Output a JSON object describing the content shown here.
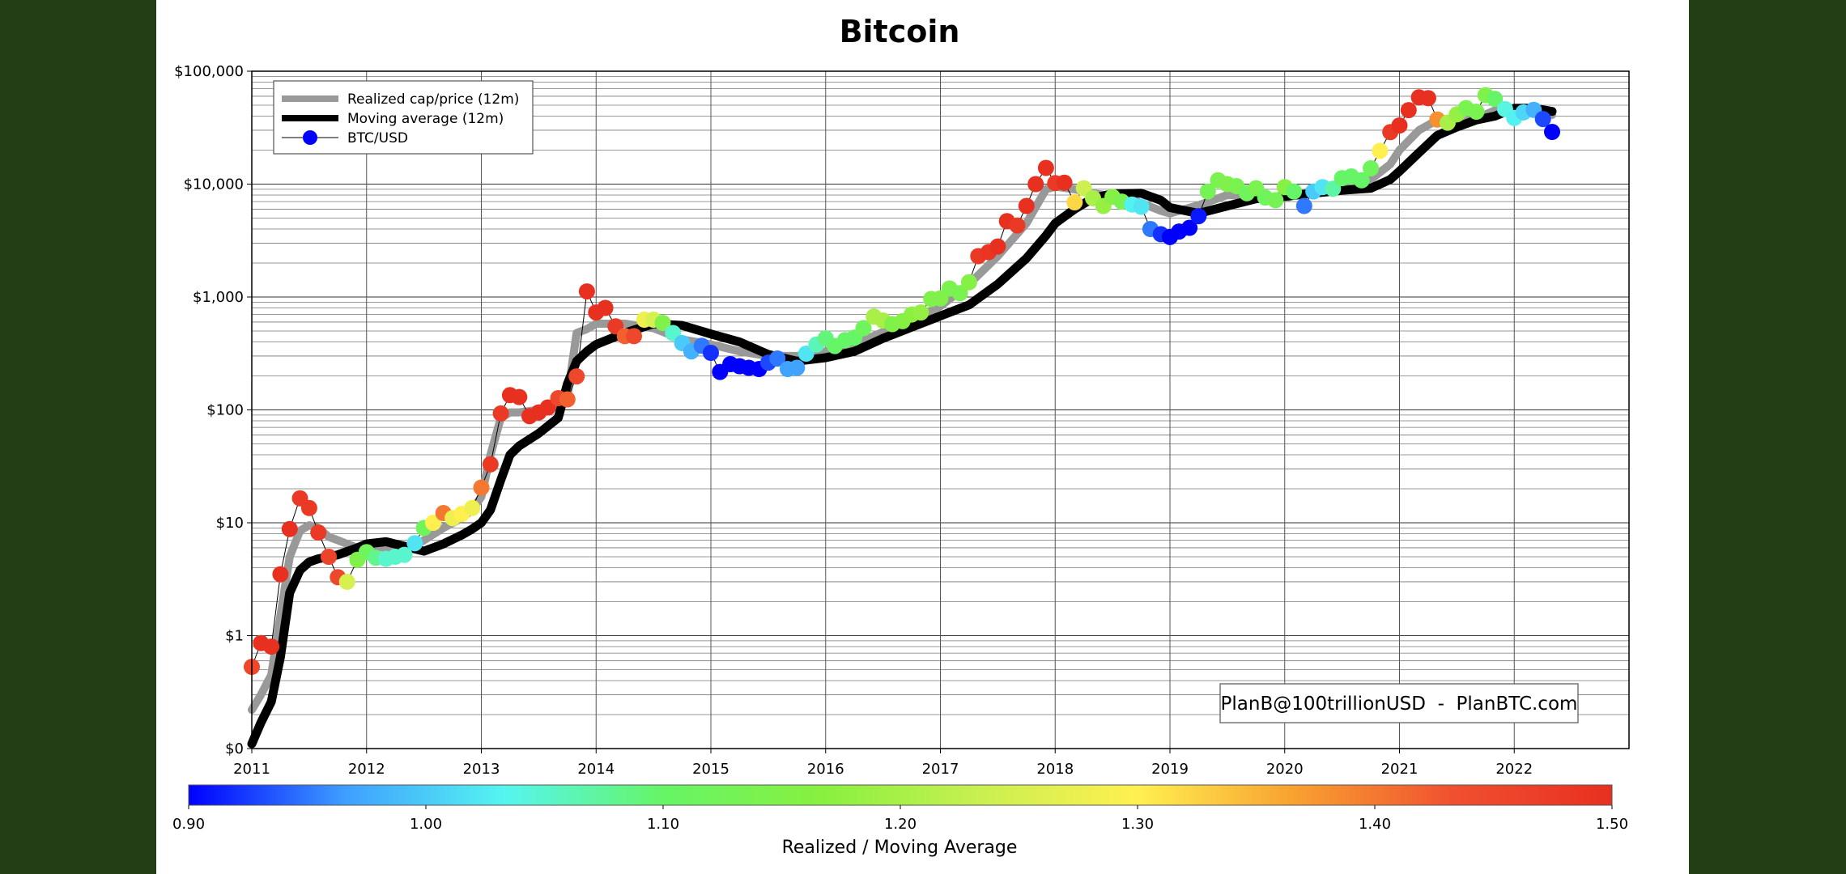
{
  "chart_data": {
    "type": "scatter",
    "title": "Bitcoin",
    "xlabel": "",
    "ylabel": "",
    "y_scale": "log",
    "xlim": [
      2011.0,
      2023.0
    ],
    "ylim": [
      0.1,
      100000
    ],
    "y_ticks": [
      {
        "value": 0.1,
        "label": "$0"
      },
      {
        "value": 1,
        "label": "$1"
      },
      {
        "value": 10,
        "label": "$10"
      },
      {
        "value": 100,
        "label": "$100"
      },
      {
        "value": 1000,
        "label": "$1,000"
      },
      {
        "value": 10000,
        "label": "$10,000"
      },
      {
        "value": 100000,
        "label": "$100,000"
      }
    ],
    "x_ticks": [
      "2011",
      "2012",
      "2013",
      "2014",
      "2015",
      "2016",
      "2017",
      "2018",
      "2019",
      "2020",
      "2021",
      "2022"
    ],
    "grid": true,
    "legend_position": "top-left",
    "legend": [
      {
        "label": "Realized cap/price (12m)",
        "color": "#999999",
        "style": "thick-line"
      },
      {
        "label": "Moving average (12m)",
        "color": "#000000",
        "style": "thick-line"
      },
      {
        "label": "BTC/USD",
        "color": "#0000ff",
        "style": "marker-line"
      }
    ],
    "annotation": "PlanB@100trillionUSD  -  PlanBTC.com",
    "colorbar": {
      "label": "Realized / Moving Average",
      "min": 0.9,
      "max": 1.5,
      "ticks": [
        "0.90",
        "1.00",
        "1.10",
        "1.20",
        "1.30",
        "1.40",
        "1.50"
      ],
      "colors": [
        "#0000ff",
        "#3fa0ff",
        "#55f5f0",
        "#66f566",
        "#88f040",
        "#c8f050",
        "#fff050",
        "#f8a030",
        "#f05030",
        "#e83020"
      ]
    },
    "series": [
      {
        "name": "Realized cap/price (12m)",
        "color": "#999999",
        "x": [
          2011.0,
          2011.08,
          2011.17,
          2011.25,
          2011.33,
          2011.42,
          2011.5,
          2011.58,
          2011.67,
          2011.75,
          2011.83,
          2011.92,
          2012.0,
          2012.17,
          2012.33,
          2012.5,
          2012.67,
          2012.83,
          2012.92,
          2013.0,
          2013.08,
          2013.17,
          2013.25,
          2013.33,
          2013.5,
          2013.67,
          2013.75,
          2013.83,
          2013.92,
          2014.0,
          2014.25,
          2014.5,
          2014.75,
          2015.0,
          2015.25,
          2015.5,
          2015.75,
          2016.0,
          2016.25,
          2016.5,
          2016.75,
          2017.0,
          2017.25,
          2017.5,
          2017.75,
          2017.92,
          2018.0,
          2018.17,
          2018.33,
          2018.5,
          2018.75,
          2018.92,
          2019.0,
          2019.25,
          2019.5,
          2019.75,
          2020.0,
          2020.25,
          2020.5,
          2020.75,
          2020.92,
          2021.0,
          2021.17,
          2021.33,
          2021.5,
          2021.67,
          2021.83,
          2022.0,
          2022.17,
          2022.33
        ],
        "y": [
          0.22,
          0.3,
          0.45,
          1.5,
          5.0,
          8.5,
          9.5,
          9.0,
          7.5,
          7.0,
          6.5,
          6.0,
          6.2,
          6.0,
          5.6,
          7.0,
          9.0,
          11.0,
          13.0,
          17.0,
          40.0,
          85.0,
          95.0,
          95.0,
          100.0,
          110.0,
          130.0,
          480.0,
          520.0,
          580.0,
          580.0,
          530.0,
          420.0,
          380.0,
          330.0,
          300.0,
          300.0,
          330.0,
          380.0,
          490.0,
          620.0,
          830.0,
          1300.0,
          2300.0,
          4500.0,
          9000.0,
          9500.0,
          9000.0,
          8300.0,
          7800.0,
          6800.0,
          5800.0,
          5500.0,
          6500.0,
          8000.0,
          7800.0,
          7500.0,
          8800.0,
          9500.0,
          11000.0,
          15000.0,
          20000.0,
          30000.0,
          37000.0,
          35000.0,
          38000.0,
          45000.0,
          46000.0,
          44000.0,
          41000.0
        ]
      },
      {
        "name": "Moving average (12m)",
        "color": "#000000",
        "x": [
          2011.0,
          2011.08,
          2011.17,
          2011.25,
          2011.33,
          2011.42,
          2011.5,
          2011.58,
          2011.67,
          2011.75,
          2011.92,
          2012.0,
          2012.17,
          2012.33,
          2012.5,
          2012.67,
          2012.83,
          2012.92,
          2013.0,
          2013.08,
          2013.17,
          2013.25,
          2013.33,
          2013.5,
          2013.67,
          2013.75,
          2013.83,
          2013.92,
          2014.0,
          2014.25,
          2014.5,
          2014.75,
          2015.0,
          2015.25,
          2015.5,
          2015.75,
          2016.0,
          2016.25,
          2016.5,
          2016.75,
          2017.0,
          2017.25,
          2017.5,
          2017.75,
          2017.92,
          2018.0,
          2018.17,
          2018.33,
          2018.5,
          2018.75,
          2018.92,
          2019.0,
          2019.25,
          2019.5,
          2019.75,
          2020.0,
          2020.25,
          2020.5,
          2020.75,
          2020.92,
          2021.0,
          2021.17,
          2021.33,
          2021.5,
          2021.67,
          2021.83,
          2022.0,
          2022.17,
          2022.33
        ],
        "y": [
          0.11,
          0.17,
          0.26,
          0.65,
          2.4,
          3.8,
          4.5,
          4.8,
          5.0,
          5.2,
          6.0,
          6.5,
          6.8,
          6.2,
          5.6,
          6.5,
          7.8,
          8.8,
          10.0,
          13.0,
          24.0,
          40.0,
          48.0,
          62.0,
          85.0,
          170.0,
          270.0,
          330.0,
          380.0,
          480.0,
          580.0,
          560.0,
          470.0,
          400.0,
          310.0,
          270.0,
          290.0,
          330.0,
          430.0,
          540.0,
          680.0,
          850.0,
          1300.0,
          2200.0,
          3500.0,
          4500.0,
          6000.0,
          7500.0,
          8200.0,
          8300.0,
          7200.0,
          6200.0,
          5500.0,
          6400.0,
          7400.0,
          7800.0,
          8300.0,
          8800.0,
          9200.0,
          11000.0,
          13000.0,
          19000.0,
          27000.0,
          32000.0,
          37000.0,
          40000.0,
          47000.0,
          47000.0,
          44000.0
        ]
      },
      {
        "name": "BTC/USD",
        "color": "#000000",
        "x": [
          2011.0,
          2011.08,
          2011.17,
          2011.25,
          2011.33,
          2011.42,
          2011.5,
          2011.58,
          2011.67,
          2011.75,
          2011.83,
          2011.92,
          2012.0,
          2012.08,
          2012.17,
          2012.25,
          2012.33,
          2012.42,
          2012.5,
          2012.58,
          2012.67,
          2012.75,
          2012.83,
          2012.92,
          2013.0,
          2013.08,
          2013.17,
          2013.25,
          2013.33,
          2013.42,
          2013.5,
          2013.58,
          2013.67,
          2013.75,
          2013.83,
          2013.92,
          2014.0,
          2014.08,
          2014.17,
          2014.25,
          2014.33,
          2014.42,
          2014.5,
          2014.58,
          2014.67,
          2014.75,
          2014.83,
          2014.92,
          2015.0,
          2015.08,
          2015.17,
          2015.25,
          2015.33,
          2015.42,
          2015.5,
          2015.58,
          2015.67,
          2015.75,
          2015.83,
          2015.92,
          2016.0,
          2016.08,
          2016.17,
          2016.25,
          2016.33,
          2016.42,
          2016.5,
          2016.58,
          2016.67,
          2016.75,
          2016.83,
          2016.92,
          2017.0,
          2017.08,
          2017.17,
          2017.25,
          2017.33,
          2017.42,
          2017.5,
          2017.58,
          2017.67,
          2017.75,
          2017.83,
          2017.92,
          2018.0,
          2018.08,
          2018.17,
          2018.25,
          2018.33,
          2018.42,
          2018.5,
          2018.58,
          2018.67,
          2018.75,
          2018.83,
          2018.92,
          2019.0,
          2019.08,
          2019.17,
          2019.25,
          2019.33,
          2019.42,
          2019.5,
          2019.58,
          2019.67,
          2019.75,
          2019.83,
          2019.92,
          2020.0,
          2020.08,
          2020.17,
          2020.25,
          2020.33,
          2020.42,
          2020.5,
          2020.58,
          2020.67,
          2020.75,
          2020.83,
          2020.92,
          2021.0,
          2021.08,
          2021.17,
          2021.25,
          2021.33,
          2021.42,
          2021.5,
          2021.58,
          2021.67,
          2021.75,
          2021.83,
          2021.92,
          2022.0,
          2022.08,
          2022.17,
          2022.25,
          2022.33
        ],
        "y": [
          0.53,
          0.86,
          0.8,
          3.5,
          8.8,
          16.5,
          13.5,
          8.2,
          5.0,
          3.3,
          3.0,
          4.7,
          5.5,
          4.9,
          4.8,
          5.0,
          5.2,
          6.6,
          9.0,
          10.0,
          12.2,
          11.0,
          12.0,
          13.5,
          20.5,
          33.0,
          93.0,
          135.0,
          130.0,
          88.0,
          95.0,
          105.0,
          127.0,
          124.0,
          198.0,
          1120.0,
          730.0,
          800.0,
          550.0,
          450.0,
          450.0,
          630.0,
          630.0,
          590.0,
          480.0,
          390.0,
          330.0,
          370.0,
          320.0,
          217.0,
          254.0,
          244.0,
          236.0,
          230.0,
          262.0,
          285.0,
          230.0,
          236.0,
          315.0,
          380.0,
          430.0,
          368.0,
          415.0,
          437.0,
          530.0,
          670.0,
          620.0,
          575.0,
          610.0,
          700.0,
          730.0,
          960.0,
          970.0,
          1190.0,
          1080.0,
          1350.0,
          2300.0,
          2500.0,
          2800.0,
          4700.0,
          4300.0,
          6400.0,
          10000.0,
          13900.0,
          10200.0,
          10300.0,
          6900.0,
          9200.0,
          7500.0,
          6400.0,
          7700.0,
          7000.0,
          6600.0,
          6300.0,
          4000.0,
          3600.0,
          3400.0,
          3800.0,
          4100.0,
          5200.0,
          8600.0,
          10800.0,
          10000.0,
          9600.0,
          8300.0,
          9200.0,
          7600.0,
          7200.0,
          9400.0,
          8600.0,
          6400.0,
          8600.0,
          9400.0,
          9100.0,
          11300.0,
          11700.0,
          10800.0,
          13800.0,
          19700.0,
          28900.0,
          33100.0,
          45200.0,
          58700.0,
          57800.0,
          37300.0,
          35000.0,
          41500.0,
          47100.0,
          43800.0,
          61300.0,
          57000.0,
          46200.0,
          38500.0,
          43200.0,
          45500.0,
          37700.0,
          29000.0
        ],
        "ratio": [
          1.45,
          1.5,
          1.5,
          1.5,
          1.5,
          1.48,
          1.48,
          1.48,
          1.46,
          1.45,
          1.25,
          1.15,
          1.12,
          1.08,
          1.05,
          1.05,
          1.05,
          1.02,
          1.12,
          1.3,
          1.4,
          1.28,
          1.3,
          1.28,
          1.4,
          1.48,
          1.48,
          1.5,
          1.5,
          1.5,
          1.5,
          1.5,
          1.45,
          1.42,
          1.45,
          1.5,
          1.5,
          1.5,
          1.48,
          1.42,
          1.45,
          1.28,
          1.25,
          1.15,
          1.05,
          1.0,
          0.98,
          0.95,
          0.92,
          0.9,
          0.9,
          0.9,
          0.9,
          0.9,
          0.93,
          0.95,
          0.97,
          0.97,
          1.02,
          1.06,
          1.09,
          1.1,
          1.1,
          1.1,
          1.12,
          1.2,
          1.2,
          1.15,
          1.16,
          1.17,
          1.18,
          1.15,
          1.15,
          1.14,
          1.14,
          1.16,
          1.48,
          1.49,
          1.5,
          1.5,
          1.48,
          1.5,
          1.5,
          1.5,
          1.48,
          1.5,
          1.32,
          1.24,
          1.2,
          1.18,
          1.16,
          1.14,
          1.03,
          1.02,
          0.95,
          0.92,
          0.9,
          0.9,
          0.9,
          0.91,
          1.13,
          1.14,
          1.15,
          1.14,
          1.12,
          1.14,
          1.12,
          1.13,
          1.16,
          1.1,
          0.95,
          1.0,
          1.02,
          1.07,
          1.1,
          1.1,
          1.1,
          1.12,
          1.3,
          1.48,
          1.5,
          1.5,
          1.5,
          1.5,
          1.38,
          1.2,
          1.18,
          1.14,
          1.14,
          1.15,
          1.1,
          1.04,
          1.03,
          1.01,
          0.98,
          0.93,
          0.9
        ]
      }
    ]
  }
}
